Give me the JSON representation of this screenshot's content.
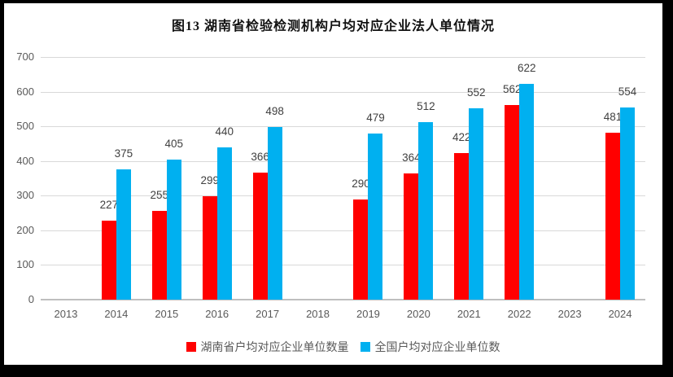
{
  "chart_data": {
    "type": "bar",
    "title": "图13 湖南省检验检测机构户均对应企业法人单位情况",
    "categories": [
      "2013",
      "2014",
      "2015",
      "2016",
      "2017",
      "2018",
      "2019",
      "2020",
      "2021",
      "2022",
      "2023",
      "2024"
    ],
    "series": [
      {
        "name": "湖南省户均对应企业单位数量",
        "key": "hunan-avg-enterprises",
        "color": "#ff0000",
        "values": [
          null,
          227,
          255,
          299,
          366,
          null,
          290,
          364,
          422,
          562,
          null,
          481
        ]
      },
      {
        "name": "全国户均对应企业单位数",
        "key": "national-avg-enterprises",
        "color": "#00b0f0",
        "values": [
          null,
          375,
          405,
          440,
          498,
          null,
          479,
          512,
          552,
          622,
          null,
          554
        ]
      }
    ],
    "xlabel": "",
    "ylabel": "",
    "ylim": [
      0,
      700
    ],
    "ytick_step": 100,
    "yticks": [
      "0",
      "100",
      "200",
      "300",
      "400",
      "500",
      "600",
      "700"
    ],
    "grid": true,
    "data_labels": true,
    "legend_position": "bottom",
    "colors": {
      "gridline": "#d9d9d9",
      "axis_line": "#bfbfbf",
      "tick_label": "#595959",
      "data_label": "#404040",
      "panel_background": "#ffffff",
      "frame_background": "#000000"
    }
  }
}
